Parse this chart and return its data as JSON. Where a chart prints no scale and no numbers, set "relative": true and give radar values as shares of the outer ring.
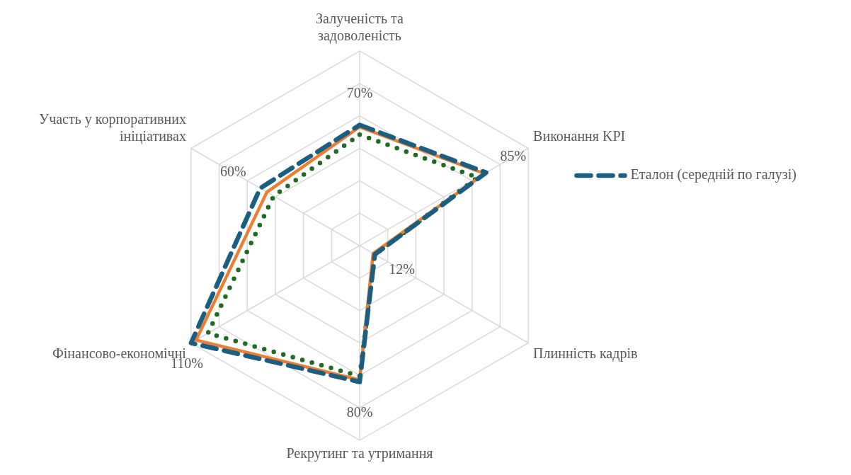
{
  "chart_data": {
    "type": "radar",
    "relative": true,
    "grid": true,
    "legend": "right",
    "marker": "none",
    "categories": [
      "Залученість та задоволеність",
      "Виконання KPI",
      "Плинність кадрів",
      "Рекрутинг та утримання",
      "Фінансово-економічні",
      "Участь у корпоративних ініціативах"
    ],
    "series": [
      {
        "name": "Еталон (середній по галузі)",
        "color": "#1b5e80",
        "line_style": "dashed",
        "values": [
          0.62,
          0.75,
          0.09,
          0.7,
          1.0,
          0.59
        ]
      },
      {
        "color": "#ed7d31",
        "line_style": "solid",
        "values": [
          0.61,
          0.74,
          0.08,
          0.69,
          0.97,
          0.55
        ]
      },
      {
        "color": "#1e6b23",
        "line_style": "dotted",
        "values": [
          0.57,
          0.7,
          0.09,
          0.67,
          0.9,
          0.51
        ]
      }
    ],
    "annotations": [
      {
        "text": "70%",
        "x": "Залученість та задоволеність"
      },
      {
        "text": "85%",
        "x": "Виконання KPI"
      },
      {
        "text": "12%",
        "x": "Плинність кадрів"
      },
      {
        "text": "80%",
        "x": "Рекрутинг та утримання"
      },
      {
        "text": "110%",
        "x": "Фінансово-економічні"
      },
      {
        "text": "60%",
        "x": "Участь у корпоративних ініціативах"
      }
    ]
  }
}
